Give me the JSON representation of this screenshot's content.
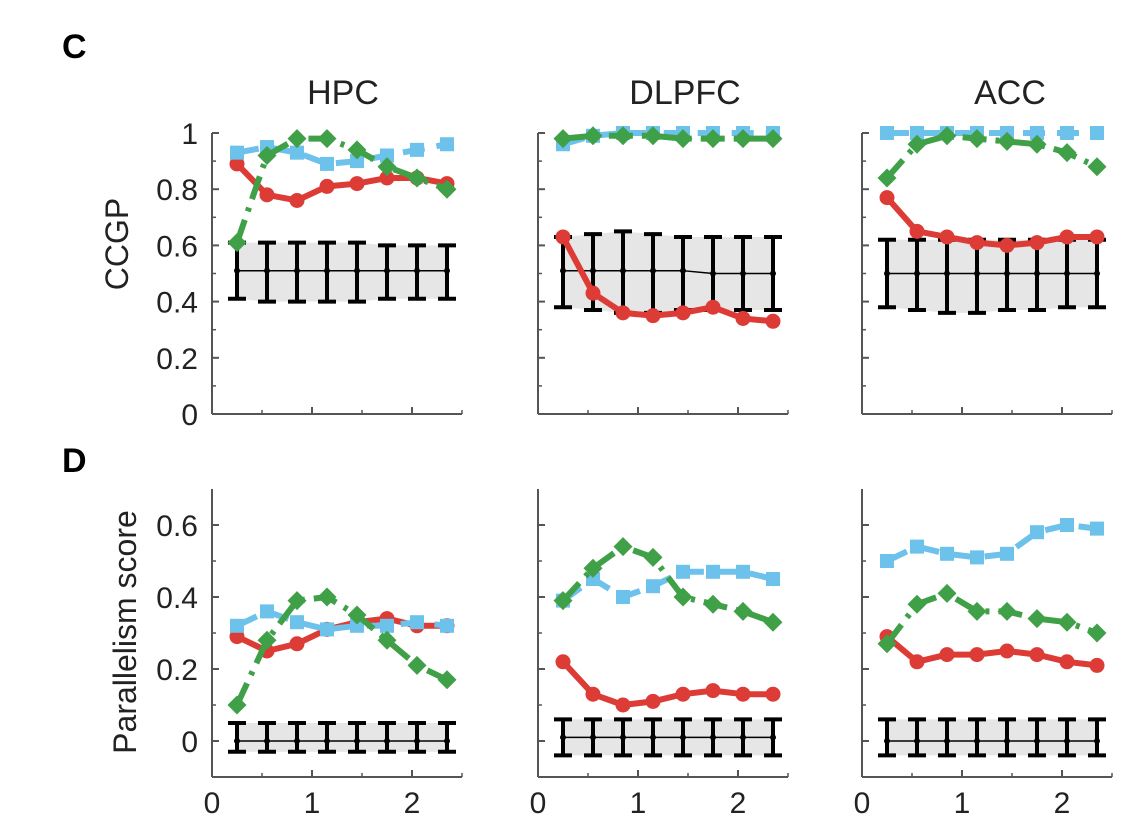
{
  "figure": {
    "panel_letters": [
      "C",
      "D"
    ],
    "column_titles": [
      "HPC",
      "DLPFC",
      "ACC"
    ],
    "row_ylabels": [
      "CCGP",
      "Parallelism score"
    ]
  },
  "colors": {
    "red": "#dd3b35",
    "blue": "#6cc2ea",
    "green": "#3fa048",
    "null": "#000000",
    "band": "#e6e6e6"
  },
  "chart_data": [
    {
      "panel": "C",
      "title": "HPC",
      "type": "line",
      "ylabel": "CCGP",
      "xlim": [
        0,
        2.5
      ],
      "ylim": [
        0,
        1
      ],
      "xticks": [
        0,
        1,
        2
      ],
      "yticks": [
        0,
        0.2,
        0.4,
        0.6,
        0.8,
        1
      ],
      "x": [
        0.25,
        0.55,
        0.85,
        1.15,
        1.45,
        1.75,
        2.05,
        2.35
      ],
      "series": [
        {
          "color": "red",
          "style": "solid",
          "marker": "circle",
          "values": [
            0.89,
            0.78,
            0.76,
            0.81,
            0.82,
            0.84,
            0.84,
            0.82
          ]
        },
        {
          "color": "blue",
          "style": "dashed",
          "marker": "square",
          "values": [
            0.93,
            0.95,
            0.93,
            0.89,
            0.9,
            0.92,
            0.94,
            0.96
          ]
        },
        {
          "color": "green",
          "style": "dashdot",
          "marker": "diamond",
          "values": [
            0.61,
            0.92,
            0.98,
            0.98,
            0.94,
            0.88,
            0.84,
            0.8
          ]
        }
      ],
      "null_distribution": {
        "mean": [
          0.51,
          0.51,
          0.51,
          0.51,
          0.51,
          0.51,
          0.51,
          0.51
        ],
        "low": [
          0.41,
          0.4,
          0.4,
          0.4,
          0.4,
          0.41,
          0.41,
          0.41
        ],
        "high": [
          0.61,
          0.61,
          0.61,
          0.61,
          0.61,
          0.6,
          0.6,
          0.6
        ]
      }
    },
    {
      "panel": "C",
      "title": "DLPFC",
      "type": "line",
      "xlim": [
        0,
        2.5
      ],
      "ylim": [
        0,
        1
      ],
      "xticks": [
        0,
        1,
        2
      ],
      "yticks": [
        0,
        0.2,
        0.4,
        0.6,
        0.8,
        1
      ],
      "x": [
        0.25,
        0.55,
        0.85,
        1.15,
        1.45,
        1.75,
        2.05,
        2.35
      ],
      "series": [
        {
          "color": "red",
          "style": "solid",
          "marker": "circle",
          "values": [
            0.63,
            0.43,
            0.36,
            0.35,
            0.36,
            0.38,
            0.34,
            0.33
          ]
        },
        {
          "color": "blue",
          "style": "dashed",
          "marker": "square",
          "values": [
            0.96,
            0.99,
            1.0,
            1.0,
            1.0,
            1.0,
            1.0,
            1.0
          ]
        },
        {
          "color": "green",
          "style": "dashdot",
          "marker": "diamond",
          "values": [
            0.98,
            0.99,
            0.99,
            0.99,
            0.98,
            0.98,
            0.98,
            0.98
          ]
        }
      ],
      "null_distribution": {
        "mean": [
          0.51,
          0.51,
          0.51,
          0.51,
          0.51,
          0.5,
          0.5,
          0.5
        ],
        "low": [
          0.38,
          0.37,
          0.36,
          0.36,
          0.37,
          0.37,
          0.37,
          0.37
        ],
        "high": [
          0.63,
          0.64,
          0.65,
          0.64,
          0.63,
          0.63,
          0.63,
          0.63
        ]
      }
    },
    {
      "panel": "C",
      "title": "ACC",
      "type": "line",
      "xlim": [
        0,
        2.5
      ],
      "ylim": [
        0,
        1
      ],
      "xticks": [
        0,
        1,
        2
      ],
      "yticks": [
        0,
        0.2,
        0.4,
        0.6,
        0.8,
        1
      ],
      "x": [
        0.25,
        0.55,
        0.85,
        1.15,
        1.45,
        1.75,
        2.05,
        2.35
      ],
      "series": [
        {
          "color": "red",
          "style": "solid",
          "marker": "circle",
          "values": [
            0.77,
            0.65,
            0.63,
            0.61,
            0.6,
            0.61,
            0.63,
            0.63
          ]
        },
        {
          "color": "blue",
          "style": "dashed",
          "marker": "square",
          "values": [
            1.0,
            1.0,
            1.0,
            1.0,
            1.0,
            1.0,
            1.0,
            1.0
          ]
        },
        {
          "color": "green",
          "style": "dashdot",
          "marker": "diamond",
          "values": [
            0.84,
            0.96,
            0.99,
            0.98,
            0.97,
            0.96,
            0.93,
            0.88
          ]
        }
      ],
      "null_distribution": {
        "mean": [
          0.5,
          0.5,
          0.5,
          0.5,
          0.5,
          0.5,
          0.5,
          0.5
        ],
        "low": [
          0.38,
          0.37,
          0.36,
          0.36,
          0.37,
          0.37,
          0.38,
          0.38
        ],
        "high": [
          0.62,
          0.62,
          0.62,
          0.62,
          0.62,
          0.62,
          0.62,
          0.62
        ]
      }
    },
    {
      "panel": "D",
      "title": "HPC",
      "type": "line",
      "ylabel": "Parallelism score",
      "xlim": [
        0,
        2.5
      ],
      "ylim": [
        -0.1,
        0.7
      ],
      "xticks": [
        0,
        1,
        2
      ],
      "yticks": [
        0,
        0.2,
        0.4,
        0.6
      ],
      "x": [
        0.25,
        0.55,
        0.85,
        1.15,
        1.45,
        1.75,
        2.05,
        2.35
      ],
      "series": [
        {
          "color": "red",
          "style": "solid",
          "marker": "circle",
          "values": [
            0.29,
            0.25,
            0.27,
            0.31,
            0.33,
            0.34,
            0.32,
            0.32
          ]
        },
        {
          "color": "blue",
          "style": "dashed",
          "marker": "square",
          "values": [
            0.32,
            0.36,
            0.33,
            0.31,
            0.32,
            0.32,
            0.33,
            0.32
          ]
        },
        {
          "color": "green",
          "style": "dashdot",
          "marker": "diamond",
          "values": [
            0.1,
            0.28,
            0.39,
            0.4,
            0.35,
            0.28,
            0.21,
            0.17
          ]
        }
      ],
      "null_distribution": {
        "mean": [
          0.0,
          0.0,
          0.0,
          0.0,
          0.0,
          0.0,
          0.0,
          0.0
        ],
        "low": [
          -0.03,
          -0.03,
          -0.03,
          -0.03,
          -0.03,
          -0.03,
          -0.03,
          -0.03
        ],
        "high": [
          0.05,
          0.05,
          0.05,
          0.05,
          0.05,
          0.05,
          0.05,
          0.05
        ]
      }
    },
    {
      "panel": "D",
      "title": "DLPFC",
      "type": "line",
      "xlim": [
        0,
        2.5
      ],
      "ylim": [
        -0.1,
        0.7
      ],
      "xticks": [
        0,
        1,
        2
      ],
      "yticks": [
        0,
        0.2,
        0.4,
        0.6
      ],
      "x": [
        0.25,
        0.55,
        0.85,
        1.15,
        1.45,
        1.75,
        2.05,
        2.35
      ],
      "series": [
        {
          "color": "red",
          "style": "solid",
          "marker": "circle",
          "values": [
            0.22,
            0.13,
            0.1,
            0.11,
            0.13,
            0.14,
            0.13,
            0.13
          ]
        },
        {
          "color": "blue",
          "style": "dashed",
          "marker": "square",
          "values": [
            0.39,
            0.45,
            0.4,
            0.43,
            0.47,
            0.47,
            0.47,
            0.45
          ]
        },
        {
          "color": "green",
          "style": "dashdot",
          "marker": "diamond",
          "values": [
            0.39,
            0.48,
            0.54,
            0.51,
            0.4,
            0.38,
            0.36,
            0.33
          ]
        }
      ],
      "null_distribution": {
        "mean": [
          0.01,
          0.01,
          0.01,
          0.01,
          0.01,
          0.01,
          0.01,
          0.01
        ],
        "low": [
          -0.04,
          -0.04,
          -0.04,
          -0.04,
          -0.04,
          -0.04,
          -0.04,
          -0.04
        ],
        "high": [
          0.06,
          0.06,
          0.06,
          0.06,
          0.06,
          0.06,
          0.06,
          0.06
        ]
      }
    },
    {
      "panel": "D",
      "title": "ACC",
      "type": "line",
      "xlim": [
        0,
        2.5
      ],
      "ylim": [
        -0.1,
        0.7
      ],
      "xticks": [
        0,
        1,
        2
      ],
      "yticks": [
        0,
        0.2,
        0.4,
        0.6
      ],
      "x": [
        0.25,
        0.55,
        0.85,
        1.15,
        1.45,
        1.75,
        2.05,
        2.35
      ],
      "series": [
        {
          "color": "red",
          "style": "solid",
          "marker": "circle",
          "values": [
            0.29,
            0.22,
            0.24,
            0.24,
            0.25,
            0.24,
            0.22,
            0.21
          ]
        },
        {
          "color": "blue",
          "style": "dashed",
          "marker": "square",
          "values": [
            0.5,
            0.54,
            0.52,
            0.51,
            0.52,
            0.58,
            0.6,
            0.59
          ]
        },
        {
          "color": "green",
          "style": "dashdot",
          "marker": "diamond",
          "values": [
            0.27,
            0.38,
            0.41,
            0.36,
            0.36,
            0.34,
            0.33,
            0.3
          ]
        }
      ],
      "null_distribution": {
        "mean": [
          0.0,
          0.0,
          0.0,
          0.0,
          0.0,
          0.0,
          0.0,
          0.0
        ],
        "low": [
          -0.04,
          -0.04,
          -0.04,
          -0.04,
          -0.04,
          -0.04,
          -0.04,
          -0.04
        ],
        "high": [
          0.06,
          0.06,
          0.06,
          0.06,
          0.06,
          0.06,
          0.06,
          0.06
        ]
      }
    }
  ]
}
